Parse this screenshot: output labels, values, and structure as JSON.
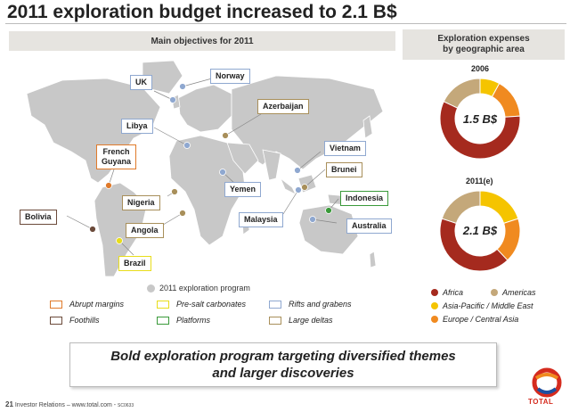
{
  "title": "2011 exploration budget increased to 2.1 B$",
  "left_panel": {
    "heading": "Main objectives for 2011",
    "labels": {
      "uk": "UK",
      "norway": "Norway",
      "azerbaijan": "Azerbaijan",
      "libya": "Libya",
      "french_guyana_1": "French",
      "french_guyana_2": "Guyana",
      "vietnam": "Vietnam",
      "brunei": "Brunei",
      "yemen": "Yemen",
      "nigeria": "Nigeria",
      "indonesia": "Indonesia",
      "bolivia": "Bolivia",
      "angola": "Angola",
      "malaysia": "Malaysia",
      "australia": "Australia",
      "brazil": "Brazil"
    },
    "program_legend": "2011 exploration program",
    "themes": {
      "abrupt_margins": "Abrupt margins",
      "pre_salt": "Pre-salt carbonates",
      "rifts": "Rifts and grabens",
      "foothills": "Foothills",
      "platforms": "Platforms",
      "large_deltas": "Large deltas"
    }
  },
  "right_panel": {
    "heading_1": "Exploration expenses",
    "heading_2": "by geographic area",
    "year_2006": "2006",
    "value_2006": "1.5 B$",
    "year_2011": "2011(e)",
    "value_2011": "2.1 B$",
    "legend": {
      "africa": "Africa",
      "americas": "Americas",
      "asia_pacific": "Asia-Pacific / Middle East",
      "europe": "Europe / Central Asia"
    },
    "colors": {
      "africa": "#a52a1e",
      "americas": "#c4a87a",
      "asia_pacific": "#f5c400",
      "europe": "#f08a20"
    },
    "shares_2006": {
      "africa": 0.58,
      "americas": 0.18,
      "asia_pacific": 0.08,
      "europe": 0.16
    },
    "shares_2011": {
      "africa": 0.42,
      "americas": 0.2,
      "asia_pacific": 0.2,
      "europe": 0.18
    }
  },
  "banner_1": "Bold exploration program targeting diversified themes",
  "banner_2": "and larger discoveries",
  "footer": {
    "page": "21",
    "text": "Investor Relations – www.total.com -",
    "code": "SC0633"
  },
  "logo_text": "TOTAL"
}
